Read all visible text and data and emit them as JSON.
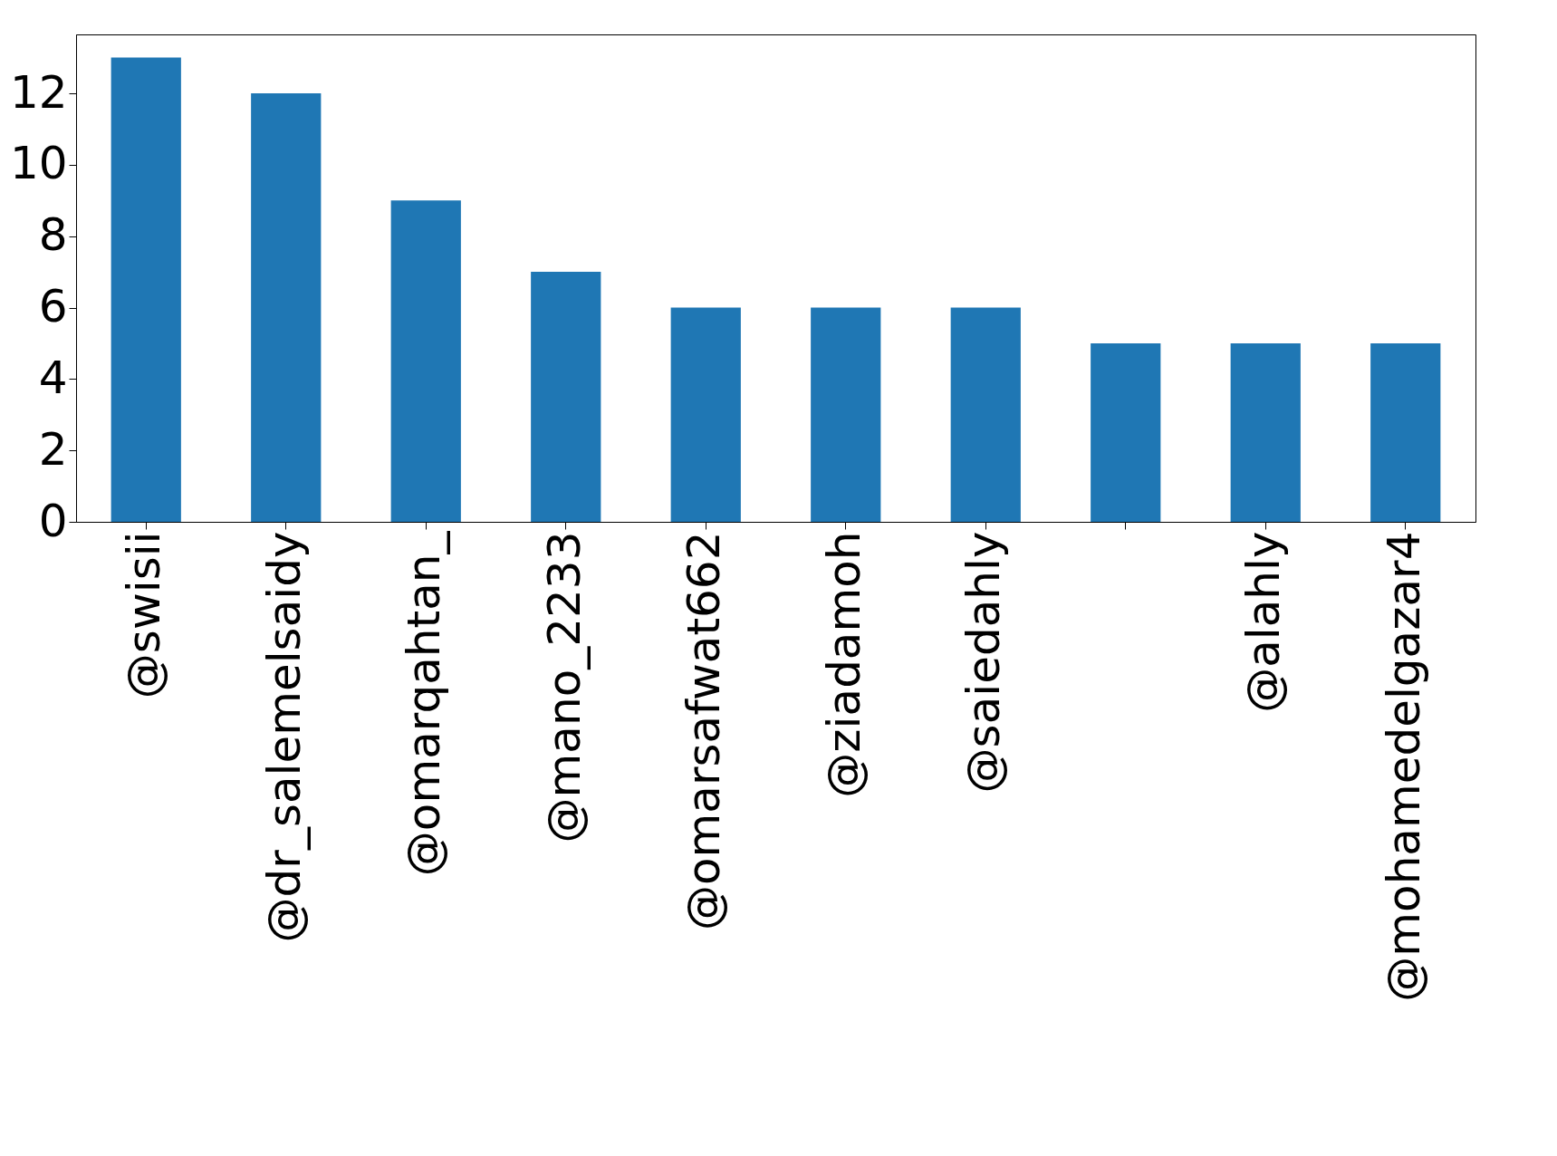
{
  "chart_data": {
    "type": "bar",
    "categories": [
      "@swisii",
      "@dr_salemelsaidy",
      "@omarqahtan_",
      "@mano_2233",
      "@omarsafwat662",
      "@ziadamoh",
      "@saiedahly",
      null,
      "@alahly",
      "@mohamedelgazar4"
    ],
    "values": [
      13,
      12,
      9,
      7,
      6,
      6,
      6,
      5,
      5,
      5
    ],
    "color": "#1f77b4",
    "ylim": [
      0,
      13.65
    ],
    "yticks": [
      0,
      2,
      4,
      6,
      8,
      10,
      12
    ],
    "grid": false
  }
}
